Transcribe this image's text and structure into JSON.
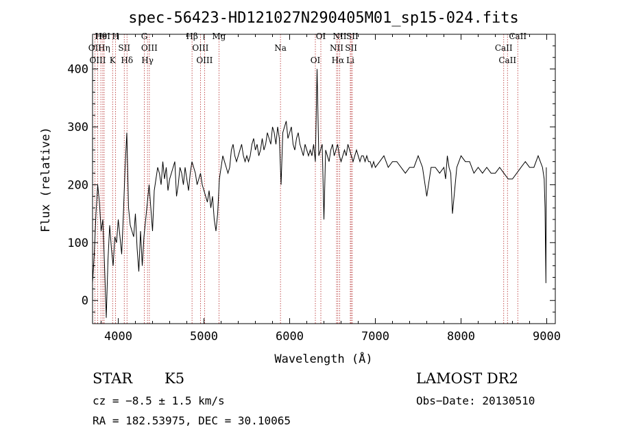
{
  "chart_data": {
    "type": "line",
    "title": "spec-56423-HD121027N290405M01_sp15-024.fits",
    "xlabel": "Wavelength (Å)",
    "ylabel": "Flux (relative)",
    "xlim": [
      3700,
      9100
    ],
    "ylim": [
      -40,
      460
    ],
    "xticks": [
      4000,
      5000,
      6000,
      7000,
      8000,
      9000
    ],
    "yticks": [
      0,
      100,
      200,
      300,
      400
    ],
    "grid": false,
    "line_color": "#000000",
    "marker_color": "#b22222",
    "series": [
      {
        "x": [
          3700,
          3720,
          3740,
          3760,
          3780,
          3800,
          3820,
          3840,
          3860,
          3880,
          3900,
          3920,
          3940,
          3960,
          3980,
          4000,
          4020,
          4040,
          4060,
          4080,
          4100,
          4120,
          4140,
          4160,
          4180,
          4200,
          4220,
          4240,
          4260,
          4280,
          4300,
          4320,
          4340,
          4360,
          4380,
          4400,
          4420,
          4440,
          4460,
          4480,
          4500,
          4520,
          4540,
          4560,
          4580,
          4600,
          4620,
          4640,
          4660,
          4680,
          4700,
          4720,
          4740,
          4760,
          4780,
          4800,
          4820,
          4840,
          4860,
          4880,
          4900,
          4920,
          4940,
          4960,
          4980,
          5000,
          5020,
          5040,
          5060,
          5080,
          5100,
          5120,
          5140,
          5160,
          5180,
          5200,
          5220,
          5240,
          5260,
          5280,
          5300,
          5320,
          5340,
          5360,
          5380,
          5400,
          5420,
          5440,
          5460,
          5480,
          5500,
          5520,
          5540,
          5560,
          5580,
          5600,
          5620,
          5640,
          5660,
          5680,
          5700,
          5720,
          5740,
          5760,
          5780,
          5800,
          5820,
          5840,
          5860,
          5880,
          5900,
          5920,
          5940,
          5960,
          5980,
          6000,
          6020,
          6040,
          6060,
          6080,
          6100,
          6120,
          6140,
          6160,
          6180,
          6200,
          6220,
          6240,
          6260,
          6280,
          6300,
          6320,
          6340,
          6360,
          6380,
          6400,
          6420,
          6440,
          6460,
          6480,
          6500,
          6520,
          6540,
          6560,
          6580,
          6600,
          6620,
          6640,
          6660,
          6680,
          6700,
          6720,
          6740,
          6760,
          6780,
          6800,
          6820,
          6840,
          6860,
          6880,
          6900,
          6920,
          6940,
          6960,
          6980,
          7000,
          7050,
          7100,
          7150,
          7200,
          7250,
          7300,
          7350,
          7400,
          7450,
          7500,
          7550,
          7600,
          7650,
          7700,
          7750,
          7800,
          7820,
          7840,
          7860,
          7880,
          7900,
          7950,
          8000,
          8050,
          8100,
          8150,
          8200,
          8250,
          8300,
          8350,
          8400,
          8450,
          8500,
          8550,
          8600,
          8650,
          8700,
          8750,
          8800,
          8850,
          8900,
          8950,
          8970,
          8980,
          8990,
          8995
        ],
        "y": [
          30,
          80,
          150,
          200,
          170,
          120,
          140,
          60,
          -30,
          70,
          130,
          90,
          60,
          110,
          100,
          140,
          110,
          80,
          150,
          230,
          290,
          160,
          130,
          120,
          110,
          150,
          90,
          50,
          120,
          60,
          110,
          140,
          170,
          200,
          160,
          120,
          190,
          210,
          230,
          220,
          200,
          240,
          210,
          230,
          190,
          210,
          220,
          230,
          240,
          180,
          200,
          230,
          220,
          200,
          230,
          210,
          190,
          220,
          240,
          230,
          220,
          200,
          210,
          220,
          200,
          190,
          180,
          170,
          190,
          160,
          180,
          140,
          120,
          150,
          210,
          230,
          250,
          240,
          230,
          220,
          230,
          260,
          270,
          250,
          240,
          250,
          260,
          270,
          250,
          240,
          250,
          240,
          250,
          270,
          280,
          260,
          270,
          250,
          260,
          280,
          260,
          270,
          290,
          280,
          270,
          300,
          290,
          270,
          300,
          280,
          200,
          290,
          300,
          310,
          280,
          290,
          300,
          270,
          260,
          280,
          290,
          270,
          260,
          250,
          270,
          260,
          250,
          260,
          250,
          270,
          240,
          400,
          250,
          260,
          270,
          140,
          260,
          250,
          240,
          260,
          270,
          250,
          260,
          270,
          250,
          240,
          250,
          260,
          250,
          270,
          260,
          250,
          240,
          250,
          260,
          250,
          240,
          250,
          250,
          240,
          250,
          240,
          240,
          230,
          240,
          230,
          240,
          250,
          230,
          240,
          240,
          230,
          220,
          230,
          230,
          250,
          230,
          180,
          230,
          230,
          220,
          230,
          210,
          250,
          230,
          220,
          150,
          230,
          250,
          240,
          240,
          220,
          230,
          220,
          230,
          220,
          220,
          230,
          220,
          210,
          210,
          220,
          230,
          240,
          230,
          230,
          250,
          230,
          210,
          160,
          30,
          230
        ]
      }
    ],
    "lines": [
      {
        "label": "Hθ",
        "x": 3797
      },
      {
        "label": "OII",
        "x": 3727
      },
      {
        "label": "OIII",
        "x": 3760
      },
      {
        "label": "HeI",
        "x": 3819
      },
      {
        "label": "Hη",
        "x": 3835
      },
      {
        "label": "K",
        "x": 3934
      },
      {
        "label": "H",
        "x": 3969
      },
      {
        "label": "SII",
        "x": 4070
      },
      {
        "label": "Hδ",
        "x": 4102
      },
      {
        "label": "G",
        "x": 4304
      },
      {
        "label": "OIII",
        "x": 4363
      },
      {
        "label": "Hγ",
        "x": 4341
      },
      {
        "label": "Hβ",
        "x": 4861
      },
      {
        "label": "OIII",
        "x": 4959
      },
      {
        "label": "OIII",
        "x": 5007
      },
      {
        "label": "Mg",
        "x": 5175
      },
      {
        "label": "Na",
        "x": 5893
      },
      {
        "label": "OI",
        "x": 6300
      },
      {
        "label": "OI",
        "x": 6364
      },
      {
        "label": "NII",
        "x": 6548
      },
      {
        "label": "Hα",
        "x": 6563
      },
      {
        "label": "NII",
        "x": 6584
      },
      {
        "label": "SII",
        "x": 6717
      },
      {
        "label": "Li",
        "x": 6708
      },
      {
        "label": "SII",
        "x": 6731
      },
      {
        "label": "CaII",
        "x": 8498
      },
      {
        "label": "CaII",
        "x": 8542
      },
      {
        "label": "CaII",
        "x": 8662
      }
    ]
  },
  "info": {
    "class": "STAR",
    "subclass": "K5",
    "survey": "LAMOST DR2",
    "cz": "cz = −8.5 ± 1.5 km/s",
    "obs_date": "Obs−Date: 20130510",
    "coords": "RA = 182.53975, DEC =  30.10065"
  }
}
